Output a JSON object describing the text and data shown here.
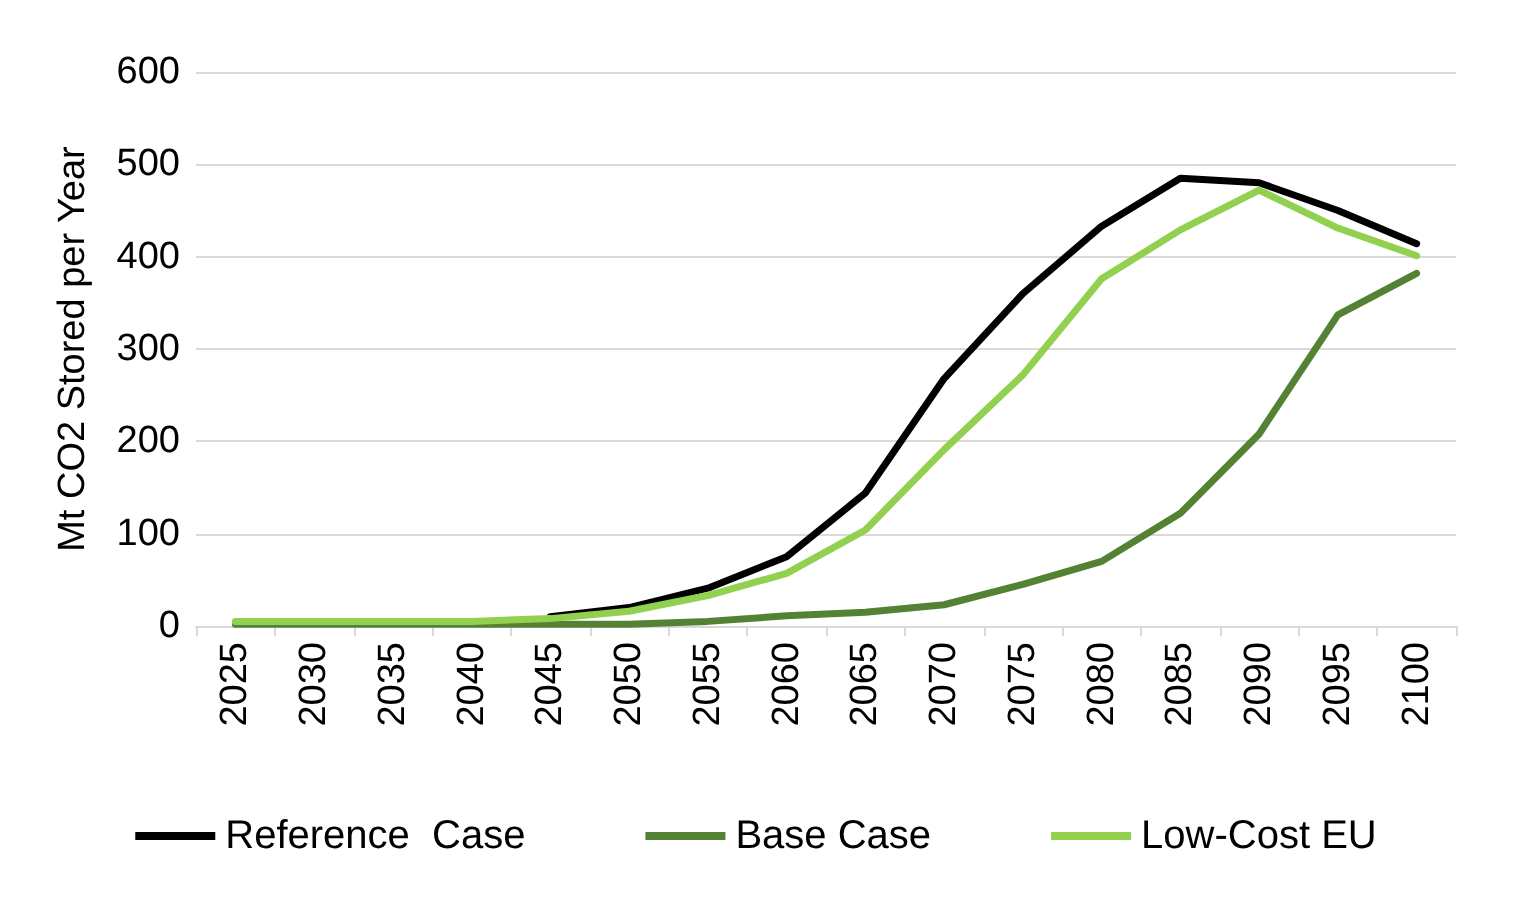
{
  "chart_data": {
    "type": "line",
    "ylabel": "Mt CO2 Stored per Year",
    "categories": [
      "2025",
      "2030",
      "2035",
      "2040",
      "2045",
      "2050",
      "2055",
      "2060",
      "2065",
      "2070",
      "2075",
      "2080",
      "2085",
      "2090",
      "2095",
      "2100"
    ],
    "series": [
      {
        "name": "Reference  Case",
        "color": "#000000",
        "values": [
          null,
          null,
          null,
          null,
          10,
          20,
          41,
          75,
          144,
          268,
          360,
          433,
          485,
          480,
          450,
          414
        ]
      },
      {
        "name": "Base Case",
        "color": "#548235",
        "values": [
          2,
          2,
          2,
          2,
          2,
          2,
          5,
          11,
          15,
          23,
          45,
          70,
          122,
          208,
          337,
          382
        ]
      },
      {
        "name": "Low-Cost EU",
        "color": "#92d050",
        "values": [
          5,
          5,
          5,
          5,
          8,
          16,
          33,
          57,
          104,
          191,
          272,
          376,
          429,
          472,
          431,
          401
        ]
      }
    ],
    "ylim": [
      0,
      600
    ],
    "yticks": [
      0,
      100,
      200,
      300,
      400,
      500,
      600
    ],
    "grid": "y",
    "legend": "bottom",
    "marker": "none",
    "line_style": "solid"
  }
}
